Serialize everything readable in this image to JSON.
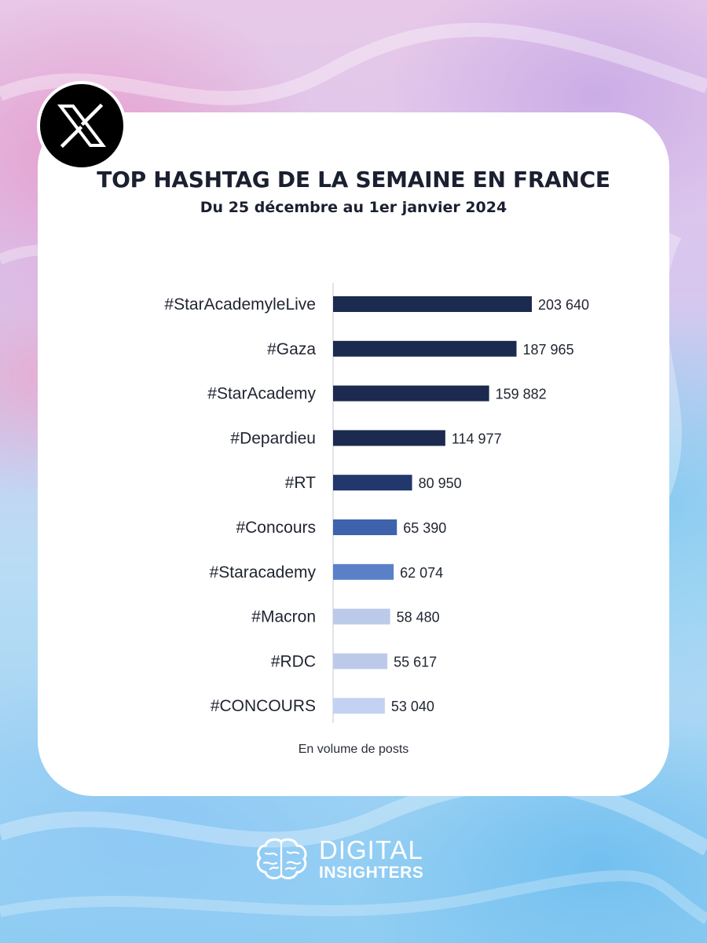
{
  "brand": {
    "logo_icon": "x-logo-icon",
    "footer_line1": "DIGITAL",
    "footer_line2": "INSIGHTERS",
    "footer_icon": "brain-icon"
  },
  "chart_data": {
    "type": "bar",
    "orientation": "horizontal",
    "title": "TOP HASHTAG DE LA SEMAINE EN FRANCE",
    "subtitle": "Du 25 décembre au 1er janvier 2024",
    "note": "En volume de posts",
    "categories": [
      "#StarAcademyleLive",
      "#Gaza",
      "#StarAcademy",
      "#Depardieu",
      "#RT",
      "#Concours",
      "#Staracademy",
      "#Macron",
      "#RDC",
      "#CONCOURS"
    ],
    "values": [
      203640,
      187965,
      159882,
      114977,
      80950,
      65390,
      62074,
      58480,
      55617,
      53040
    ],
    "value_labels": [
      "203 640",
      "187 965",
      "159 882",
      "114 977",
      "80 950",
      "65 390",
      "62 074",
      "58 480",
      "55 617",
      "53 040"
    ],
    "bar_colors": [
      "#1b2a4e",
      "#1b2a4e",
      "#1b2a4e",
      "#1b2a4e",
      "#22386d",
      "#3f62ad",
      "#5a80c8",
      "#bccaea",
      "#bccaea",
      "#c3d2f2"
    ],
    "xlim": [
      0,
      203640
    ],
    "grid": false,
    "legend": "none"
  }
}
